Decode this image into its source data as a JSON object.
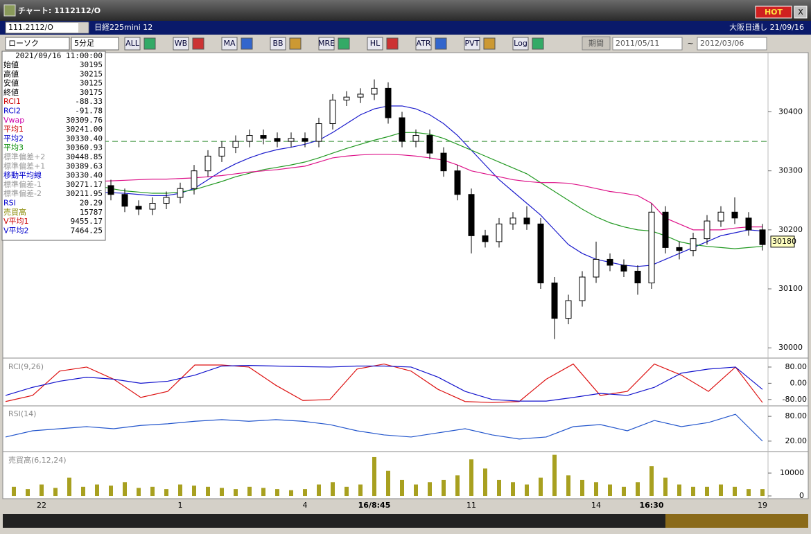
{
  "window": {
    "title": "チャート: 1112112/O",
    "hot": "HOT",
    "close": "X"
  },
  "toolbar": {
    "code": "111.2112/O",
    "instrument": "日経225mini 12",
    "session": "大阪日通し 21/09/16",
    "chart_style": "ローソク",
    "interval": "5分足",
    "buttons": [
      "ALL",
      "WB",
      "MA",
      "BB",
      "MRE",
      "HL",
      "ATR",
      "PVT",
      "Log"
    ],
    "period": "期間",
    "from": "2011/05/11",
    "tilde": "~",
    "to": "2012/03/06"
  },
  "info_panel": {
    "datetime": "2021/09/16 11:00:00",
    "rows": [
      {
        "label": "始値",
        "value": "30195",
        "color": "#000000"
      },
      {
        "label": "高値",
        "value": "30215",
        "color": "#000000"
      },
      {
        "label": "安値",
        "value": "30125",
        "color": "#000000"
      },
      {
        "label": "終値",
        "value": "30175",
        "color": "#000000"
      },
      {
        "label": "RCI1",
        "value": "-88.33",
        "color": "#cc0000"
      },
      {
        "label": "RCI2",
        "value": "-91.78",
        "color": "#0000cc"
      },
      {
        "label": "Vwap",
        "value": "30309.76",
        "color": "#cc00aa"
      },
      {
        "label": "平均1",
        "value": "30241.00",
        "color": "#cc0000"
      },
      {
        "label": "平均2",
        "value": "30330.40",
        "color": "#0000cc"
      },
      {
        "label": "平均3",
        "value": "30360.93",
        "color": "#008800"
      },
      {
        "label": "標準偏差+2",
        "value": "30448.85",
        "color": "#999999"
      },
      {
        "label": "標準偏差+1",
        "value": "30389.63",
        "color": "#999999"
      },
      {
        "label": "移動平均線",
        "value": "30330.40",
        "color": "#0000cc"
      },
      {
        "label": "標準偏差-1",
        "value": "30271.17",
        "color": "#999999"
      },
      {
        "label": "標準偏差-2",
        "value": "30211.95",
        "color": "#999999"
      },
      {
        "label": "RSI",
        "value": "20.29",
        "color": "#0000cc"
      },
      {
        "label": "売買高",
        "value": "15787",
        "color": "#888800"
      },
      {
        "label": "V平均1",
        "value": "9455.17",
        "color": "#cc0000"
      },
      {
        "label": "V平均2",
        "value": "7464.25",
        "color": "#0000cc"
      }
    ]
  },
  "chart_data": [
    {
      "type": "candlestick",
      "ylim": [
        29985,
        30498
      ],
      "yticks": [
        30000,
        30100,
        30200,
        30300,
        30400
      ],
      "up_color": "#ffffff",
      "down_color": "#000000",
      "last_price": 30180,
      "hline": 30350,
      "hline_color": "#2e8b2e",
      "candles": [
        [
          30295,
          30305,
          30280,
          30290
        ],
        [
          30290,
          30300,
          30275,
          30285
        ],
        [
          30285,
          30305,
          30275,
          30295
        ],
        [
          30295,
          30305,
          30270,
          30280
        ],
        [
          30280,
          30300,
          30270,
          30290
        ],
        [
          30290,
          30300,
          30275,
          30285
        ],
        [
          30285,
          30295,
          30265,
          30275
        ],
        [
          30275,
          30285,
          30250,
          30260
        ],
        [
          30260,
          30270,
          30230,
          30240
        ],
        [
          30240,
          30250,
          30225,
          30235
        ],
        [
          30235,
          30255,
          30225,
          30245
        ],
        [
          30245,
          30265,
          30235,
          30255
        ],
        [
          30255,
          30280,
          30245,
          30270
        ],
        [
          30270,
          30310,
          30260,
          30300
        ],
        [
          30300,
          30335,
          30290,
          30325
        ],
        [
          30325,
          30350,
          30315,
          30340
        ],
        [
          30340,
          30360,
          30330,
          30350
        ],
        [
          30350,
          30370,
          30340,
          30360
        ],
        [
          30360,
          30370,
          30345,
          30355
        ],
        [
          30355,
          30365,
          30340,
          30350
        ],
        [
          30350,
          30365,
          30340,
          30355
        ],
        [
          30355,
          30365,
          30340,
          30350
        ],
        [
          30350,
          30390,
          30340,
          30380
        ],
        [
          30380,
          30430,
          30370,
          30420
        ],
        [
          30420,
          30435,
          30410,
          30425
        ],
        [
          30425,
          30440,
          30415,
          30430
        ],
        [
          30430,
          30455,
          30420,
          30440
        ],
        [
          30440,
          30450,
          30380,
          30390
        ],
        [
          30390,
          30400,
          30340,
          30350
        ],
        [
          30350,
          30370,
          30340,
          30360
        ],
        [
          30360,
          30370,
          30320,
          30330
        ],
        [
          30330,
          30340,
          30290,
          30300
        ],
        [
          30300,
          30310,
          30250,
          30260
        ],
        [
          30260,
          30270,
          30160,
          30190
        ],
        [
          30190,
          30200,
          30170,
          30180
        ],
        [
          30180,
          30220,
          30170,
          30210
        ],
        [
          30210,
          30230,
          30200,
          30220
        ],
        [
          30220,
          30240,
          30200,
          30210
        ],
        [
          30210,
          30220,
          30100,
          30110
        ],
        [
          30110,
          30120,
          30015,
          30050
        ],
        [
          30050,
          30090,
          30040,
          30080
        ],
        [
          30080,
          30130,
          30070,
          30120
        ],
        [
          30120,
          30180,
          30110,
          30150
        ],
        [
          30150,
          30160,
          30130,
          30140
        ],
        [
          30140,
          30150,
          30120,
          30130
        ],
        [
          30130,
          30140,
          30090,
          30110
        ],
        [
          30110,
          30245,
          30100,
          30230
        ],
        [
          30230,
          30240,
          30160,
          30170
        ],
        [
          30170,
          30180,
          30150,
          30165
        ],
        [
          30165,
          30195,
          30155,
          30185
        ],
        [
          30185,
          30225,
          30175,
          30215
        ],
        [
          30215,
          30240,
          30205,
          30230
        ],
        [
          30230,
          30255,
          30210,
          30220
        ],
        [
          30220,
          30230,
          30190,
          30200
        ],
        [
          30200,
          30210,
          30165,
          30175
        ]
      ],
      "series": [
        {
          "name": "平均2",
          "color": "#1a1acc",
          "values": [
            30275,
            30272,
            30270,
            30268,
            30266,
            30265,
            30264,
            30263,
            30262,
            30260,
            30258,
            30258,
            30262,
            30270,
            30285,
            30300,
            30312,
            30322,
            30330,
            30336,
            30340,
            30345,
            30352,
            30365,
            30380,
            30395,
            30405,
            30410,
            30410,
            30405,
            30395,
            30380,
            30360,
            30335,
            30310,
            30285,
            30265,
            30245,
            30225,
            30200,
            30175,
            30160,
            30150,
            30145,
            30140,
            30138,
            30140,
            30150,
            30160,
            30170,
            30180,
            30190,
            30195,
            30200,
            30198
          ]
        },
        {
          "name": "平均3",
          "color": "#229922",
          "values": [
            30300,
            30298,
            30295,
            30290,
            30285,
            30280,
            30275,
            30270,
            30266,
            30264,
            30262,
            30262,
            30264,
            30268,
            30275,
            30282,
            30290,
            30296,
            30302,
            30306,
            30310,
            30315,
            30322,
            30330,
            30338,
            30345,
            30352,
            30358,
            30365,
            30365,
            30362,
            30355,
            30345,
            30335,
            30325,
            30315,
            30305,
            30295,
            30280,
            30265,
            30250,
            30235,
            30222,
            30212,
            30205,
            30200,
            30198,
            30190,
            30180,
            30175,
            30172,
            30170,
            30168,
            30170,
            30172
          ]
        },
        {
          "name": "Vwap",
          "color": "#dd1188",
          "values": [
            30290,
            30288,
            30286,
            30284,
            30283,
            30282,
            30282,
            30283,
            30284,
            30285,
            30286,
            30286,
            30287,
            30288,
            30290,
            30292,
            30295,
            30298,
            30300,
            30302,
            30305,
            30308,
            30315,
            30322,
            30325,
            30327,
            30328,
            30328,
            30327,
            30325,
            30322,
            30318,
            30310,
            30300,
            30295,
            30290,
            30285,
            30282,
            30280,
            30280,
            30279,
            30275,
            30270,
            30265,
            30262,
            30258,
            30245,
            30220,
            30210,
            30200,
            30200,
            30200,
            30203,
            30205,
            30205
          ]
        }
      ]
    },
    {
      "type": "line",
      "title": "RCI(9,26)",
      "ylim": [
        -108,
        114
      ],
      "yticks": [
        {
          "value": 80,
          "label": "80.00"
        },
        {
          "value": 0,
          "label": "0.00"
        },
        {
          "value": -80,
          "label": "-80.00"
        }
      ],
      "series": [
        {
          "name": "RCI1",
          "color": "#dd1111",
          "values": [
            -90,
            -60,
            60,
            80,
            20,
            -70,
            -40,
            90,
            90,
            80,
            -10,
            -85,
            -80,
            70,
            95,
            60,
            -30,
            -90,
            -95,
            -90,
            20,
            95,
            -60,
            -40,
            95,
            40,
            -40,
            80,
            -95
          ]
        },
        {
          "name": "RCI2",
          "color": "#1111cc",
          "values": [
            -60,
            -20,
            10,
            30,
            20,
            0,
            10,
            40,
            85,
            88,
            85,
            82,
            80,
            85,
            85,
            80,
            30,
            -40,
            -80,
            -88,
            -88,
            -70,
            -50,
            -60,
            -20,
            50,
            70,
            80,
            -30
          ]
        }
      ]
    },
    {
      "type": "line",
      "title": "RSI(14)",
      "ylim": [
        -2,
        102
      ],
      "yticks": [
        {
          "value": 80,
          "label": "80.00"
        },
        {
          "value": 20,
          "label": "20.00"
        }
      ],
      "series": [
        {
          "name": "RSI",
          "color": "#2255cc",
          "values": [
            30,
            45,
            50,
            55,
            50,
            58,
            62,
            68,
            72,
            68,
            72,
            68,
            60,
            45,
            35,
            30,
            40,
            50,
            35,
            25,
            30,
            55,
            60,
            45,
            70,
            55,
            65,
            85,
            20
          ]
        }
      ]
    },
    {
      "type": "bar",
      "title": "売買高(6,12,24)",
      "ylim": [
        -600,
        18500
      ],
      "yticks": [
        10000,
        0
      ],
      "color": "#a8a020",
      "categories": [
        null,
        null,
        "22",
        null,
        null,
        null,
        null,
        null,
        null,
        null,
        null,
        null,
        "1",
        null,
        null,
        null,
        null,
        null,
        null,
        null,
        null,
        "4",
        null,
        null,
        null,
        null,
        "16/8:45",
        null,
        null,
        null,
        null,
        null,
        null,
        "11",
        null,
        null,
        null,
        null,
        null,
        null,
        null,
        null,
        "14",
        null,
        null,
        null,
        "16:30",
        null,
        null,
        null,
        null,
        null,
        null,
        null,
        "19"
      ],
      "values": [
        4000,
        3000,
        5000,
        3500,
        8000,
        4000,
        5000,
        4500,
        6000,
        3500,
        4000,
        3000,
        5000,
        4500,
        4000,
        3500,
        3000,
        4000,
        3500,
        3000,
        2500,
        3000,
        5000,
        6000,
        4000,
        5000,
        17000,
        11000,
        7000,
        5000,
        6000,
        7000,
        9000,
        16000,
        12000,
        7000,
        6000,
        5000,
        8000,
        18000,
        9000,
        7000,
        6000,
        5000,
        4000,
        6000,
        13000,
        8000,
        5000,
        4000,
        4000,
        5000,
        4000,
        3000,
        3000
      ]
    }
  ]
}
